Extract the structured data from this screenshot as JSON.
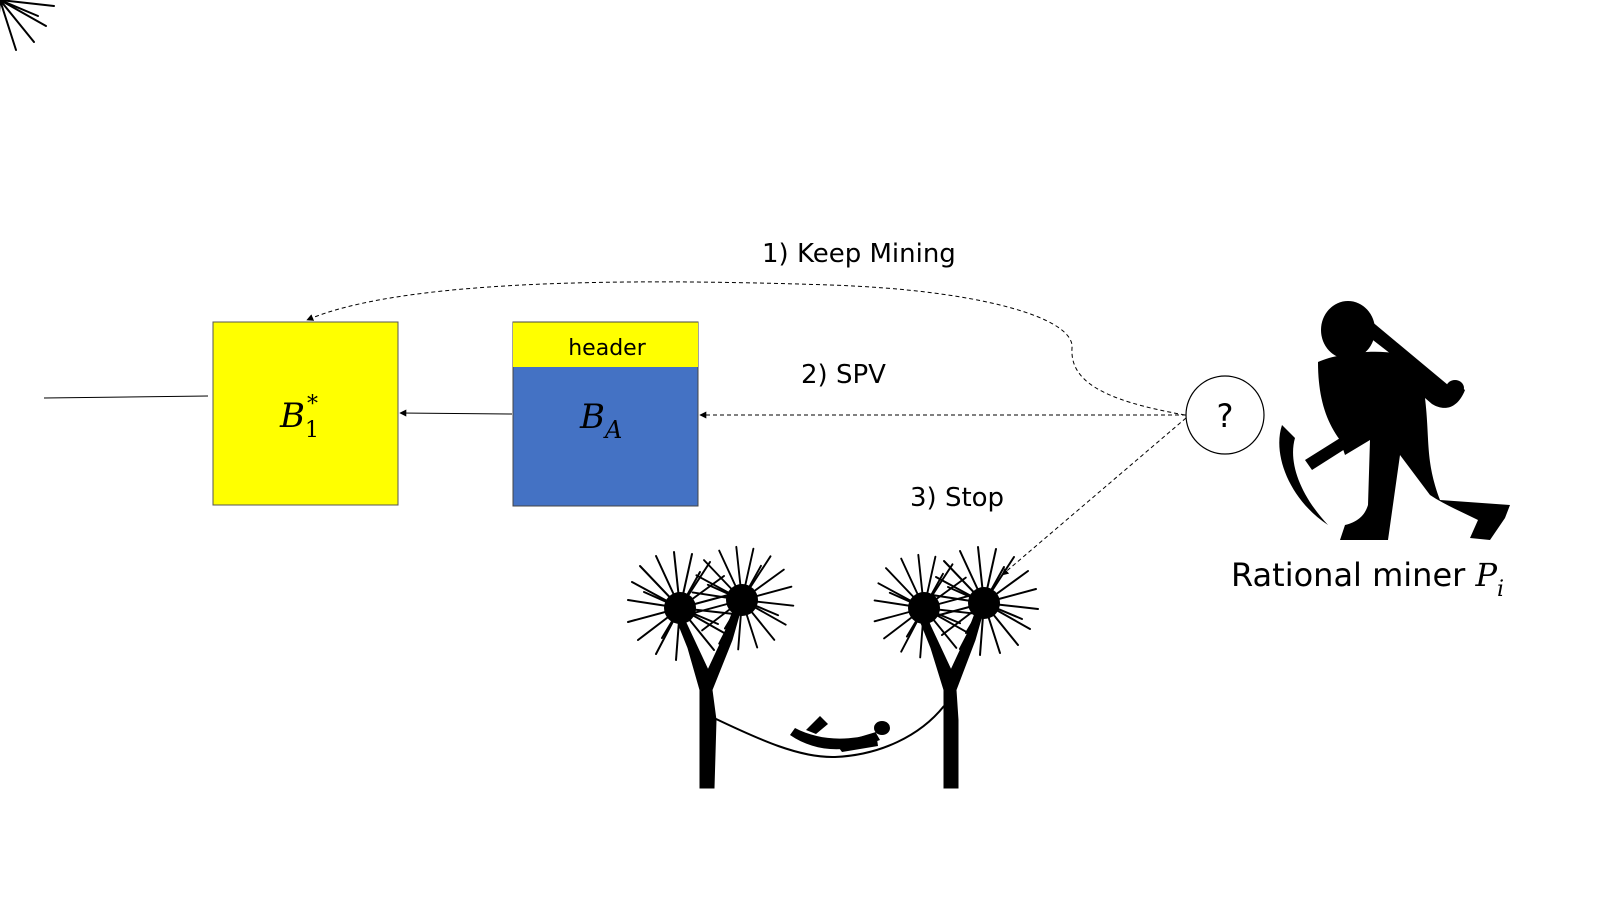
{
  "blocks": {
    "b1": {
      "symbol": "B",
      "sub": "1",
      "sup": "*",
      "color": "#ffff00"
    },
    "ba": {
      "symbol": "B",
      "sub": "A",
      "header_label": "header",
      "header_color": "#ffff00",
      "body_color": "#4472c4"
    }
  },
  "options": {
    "keep_mining": "1) Keep Mining",
    "spv": "2) SPV",
    "stop": "3) Stop"
  },
  "decision": {
    "symbol": "?"
  },
  "miner": {
    "label": "Rational miner ",
    "symbol": "P",
    "sub": "i"
  },
  "icons": {
    "miner": "miner-with-pickaxe-icon",
    "rest": "palm-trees-hammock-icon"
  }
}
